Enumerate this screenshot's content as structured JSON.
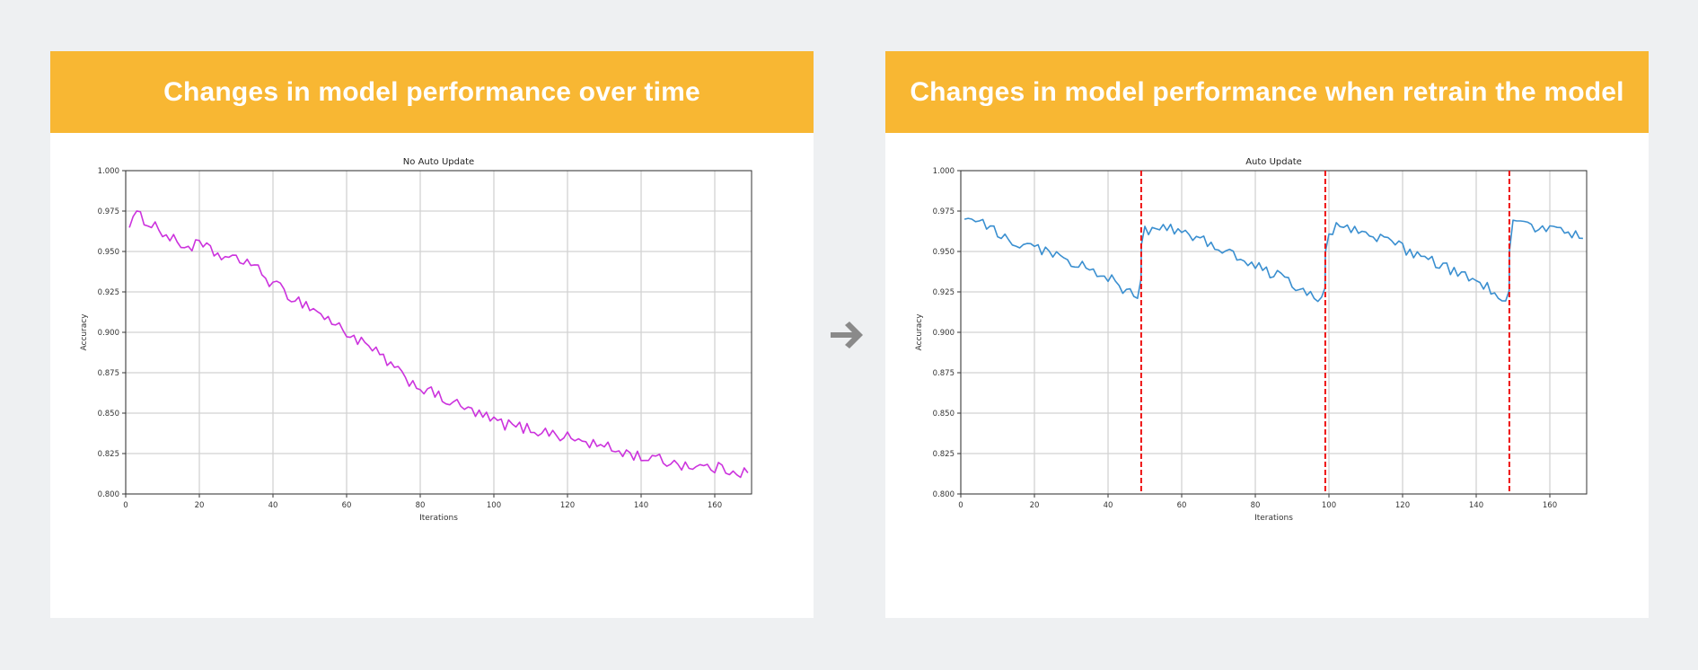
{
  "colors": {
    "background": "#eef0f2",
    "header": "#f8b733",
    "header_text": "#ffffff",
    "arrow": "#8a8a8a",
    "grid": "#d2d2d2",
    "line_left": "#cc33dd",
    "line_right": "#3a8fd0",
    "retrain_marker": "#ee1111"
  },
  "panels": {
    "left": {
      "header": "Changes in model performance over time"
    },
    "right": {
      "header": "Changes in model performance when retrain the model"
    }
  },
  "arrow_icon": "right-arrow-icon",
  "chart_data": [
    {
      "type": "line",
      "title": "No Auto Update",
      "xlabel": "Iterations",
      "ylabel": "Accuracy",
      "xlim": [
        0,
        170
      ],
      "ylim": [
        0.8,
        1.0
      ],
      "xticks": [
        0,
        20,
        40,
        60,
        80,
        100,
        120,
        140,
        160
      ],
      "yticks": [
        0.8,
        0.825,
        0.85,
        0.875,
        0.9,
        0.925,
        0.95,
        0.975,
        1.0
      ],
      "ytick_labels": [
        "0.800",
        "0.825",
        "0.850",
        "0.875",
        "0.900",
        "0.925",
        "0.950",
        "0.975",
        "1.000"
      ],
      "grid": true,
      "color": "#cc33dd",
      "anchors": {
        "x": [
          1,
          3,
          5,
          8,
          12,
          16,
          20,
          25,
          30,
          33,
          36,
          40,
          45,
          50,
          55,
          60,
          65,
          70,
          75,
          80,
          85,
          90,
          95,
          100,
          105,
          110,
          115,
          120,
          125,
          130,
          135,
          140,
          145,
          150,
          155,
          160,
          165,
          169
        ],
        "y": [
          0.968,
          0.972,
          0.97,
          0.966,
          0.958,
          0.953,
          0.954,
          0.948,
          0.944,
          0.945,
          0.938,
          0.93,
          0.922,
          0.916,
          0.908,
          0.9,
          0.892,
          0.884,
          0.873,
          0.866,
          0.86,
          0.855,
          0.85,
          0.845,
          0.842,
          0.84,
          0.838,
          0.835,
          0.832,
          0.829,
          0.826,
          0.823,
          0.821,
          0.819,
          0.817,
          0.816,
          0.815,
          0.813
        ]
      },
      "noise_amplitude": 0.0038
    },
    {
      "type": "line",
      "title": "Auto Update",
      "xlabel": "Iterations",
      "ylabel": "Accuracy",
      "xlim": [
        0,
        170
      ],
      "ylim": [
        0.8,
        1.0
      ],
      "xticks": [
        0,
        20,
        40,
        60,
        80,
        100,
        120,
        140,
        160
      ],
      "yticks": [
        0.8,
        0.825,
        0.85,
        0.875,
        0.9,
        0.925,
        0.95,
        0.975,
        1.0
      ],
      "ytick_labels": [
        "0.800",
        "0.825",
        "0.850",
        "0.875",
        "0.900",
        "0.925",
        "0.950",
        "0.975",
        "1.000"
      ],
      "grid": true,
      "color": "#3a8fd0",
      "retrain_iterations": [
        49,
        99,
        149
      ],
      "anchors": {
        "x": [
          1,
          5,
          10,
          15,
          20,
          25,
          30,
          35,
          40,
          45,
          48.9,
          49.1,
          55,
          60,
          65,
          70,
          75,
          80,
          85,
          90,
          95,
          98.9,
          99.1,
          105,
          110,
          115,
          120,
          125,
          130,
          135,
          140,
          145,
          148.9,
          149.1,
          155,
          160,
          165,
          169
        ],
        "y": [
          0.97,
          0.968,
          0.962,
          0.955,
          0.952,
          0.948,
          0.944,
          0.94,
          0.934,
          0.926,
          0.92,
          0.962,
          0.966,
          0.962,
          0.958,
          0.953,
          0.947,
          0.941,
          0.936,
          0.93,
          0.925,
          0.92,
          0.963,
          0.966,
          0.962,
          0.957,
          0.952,
          0.947,
          0.942,
          0.937,
          0.931,
          0.925,
          0.914,
          0.967,
          0.966,
          0.963,
          0.962,
          0.96
        ]
      },
      "noise_amplitude": 0.0035
    }
  ]
}
